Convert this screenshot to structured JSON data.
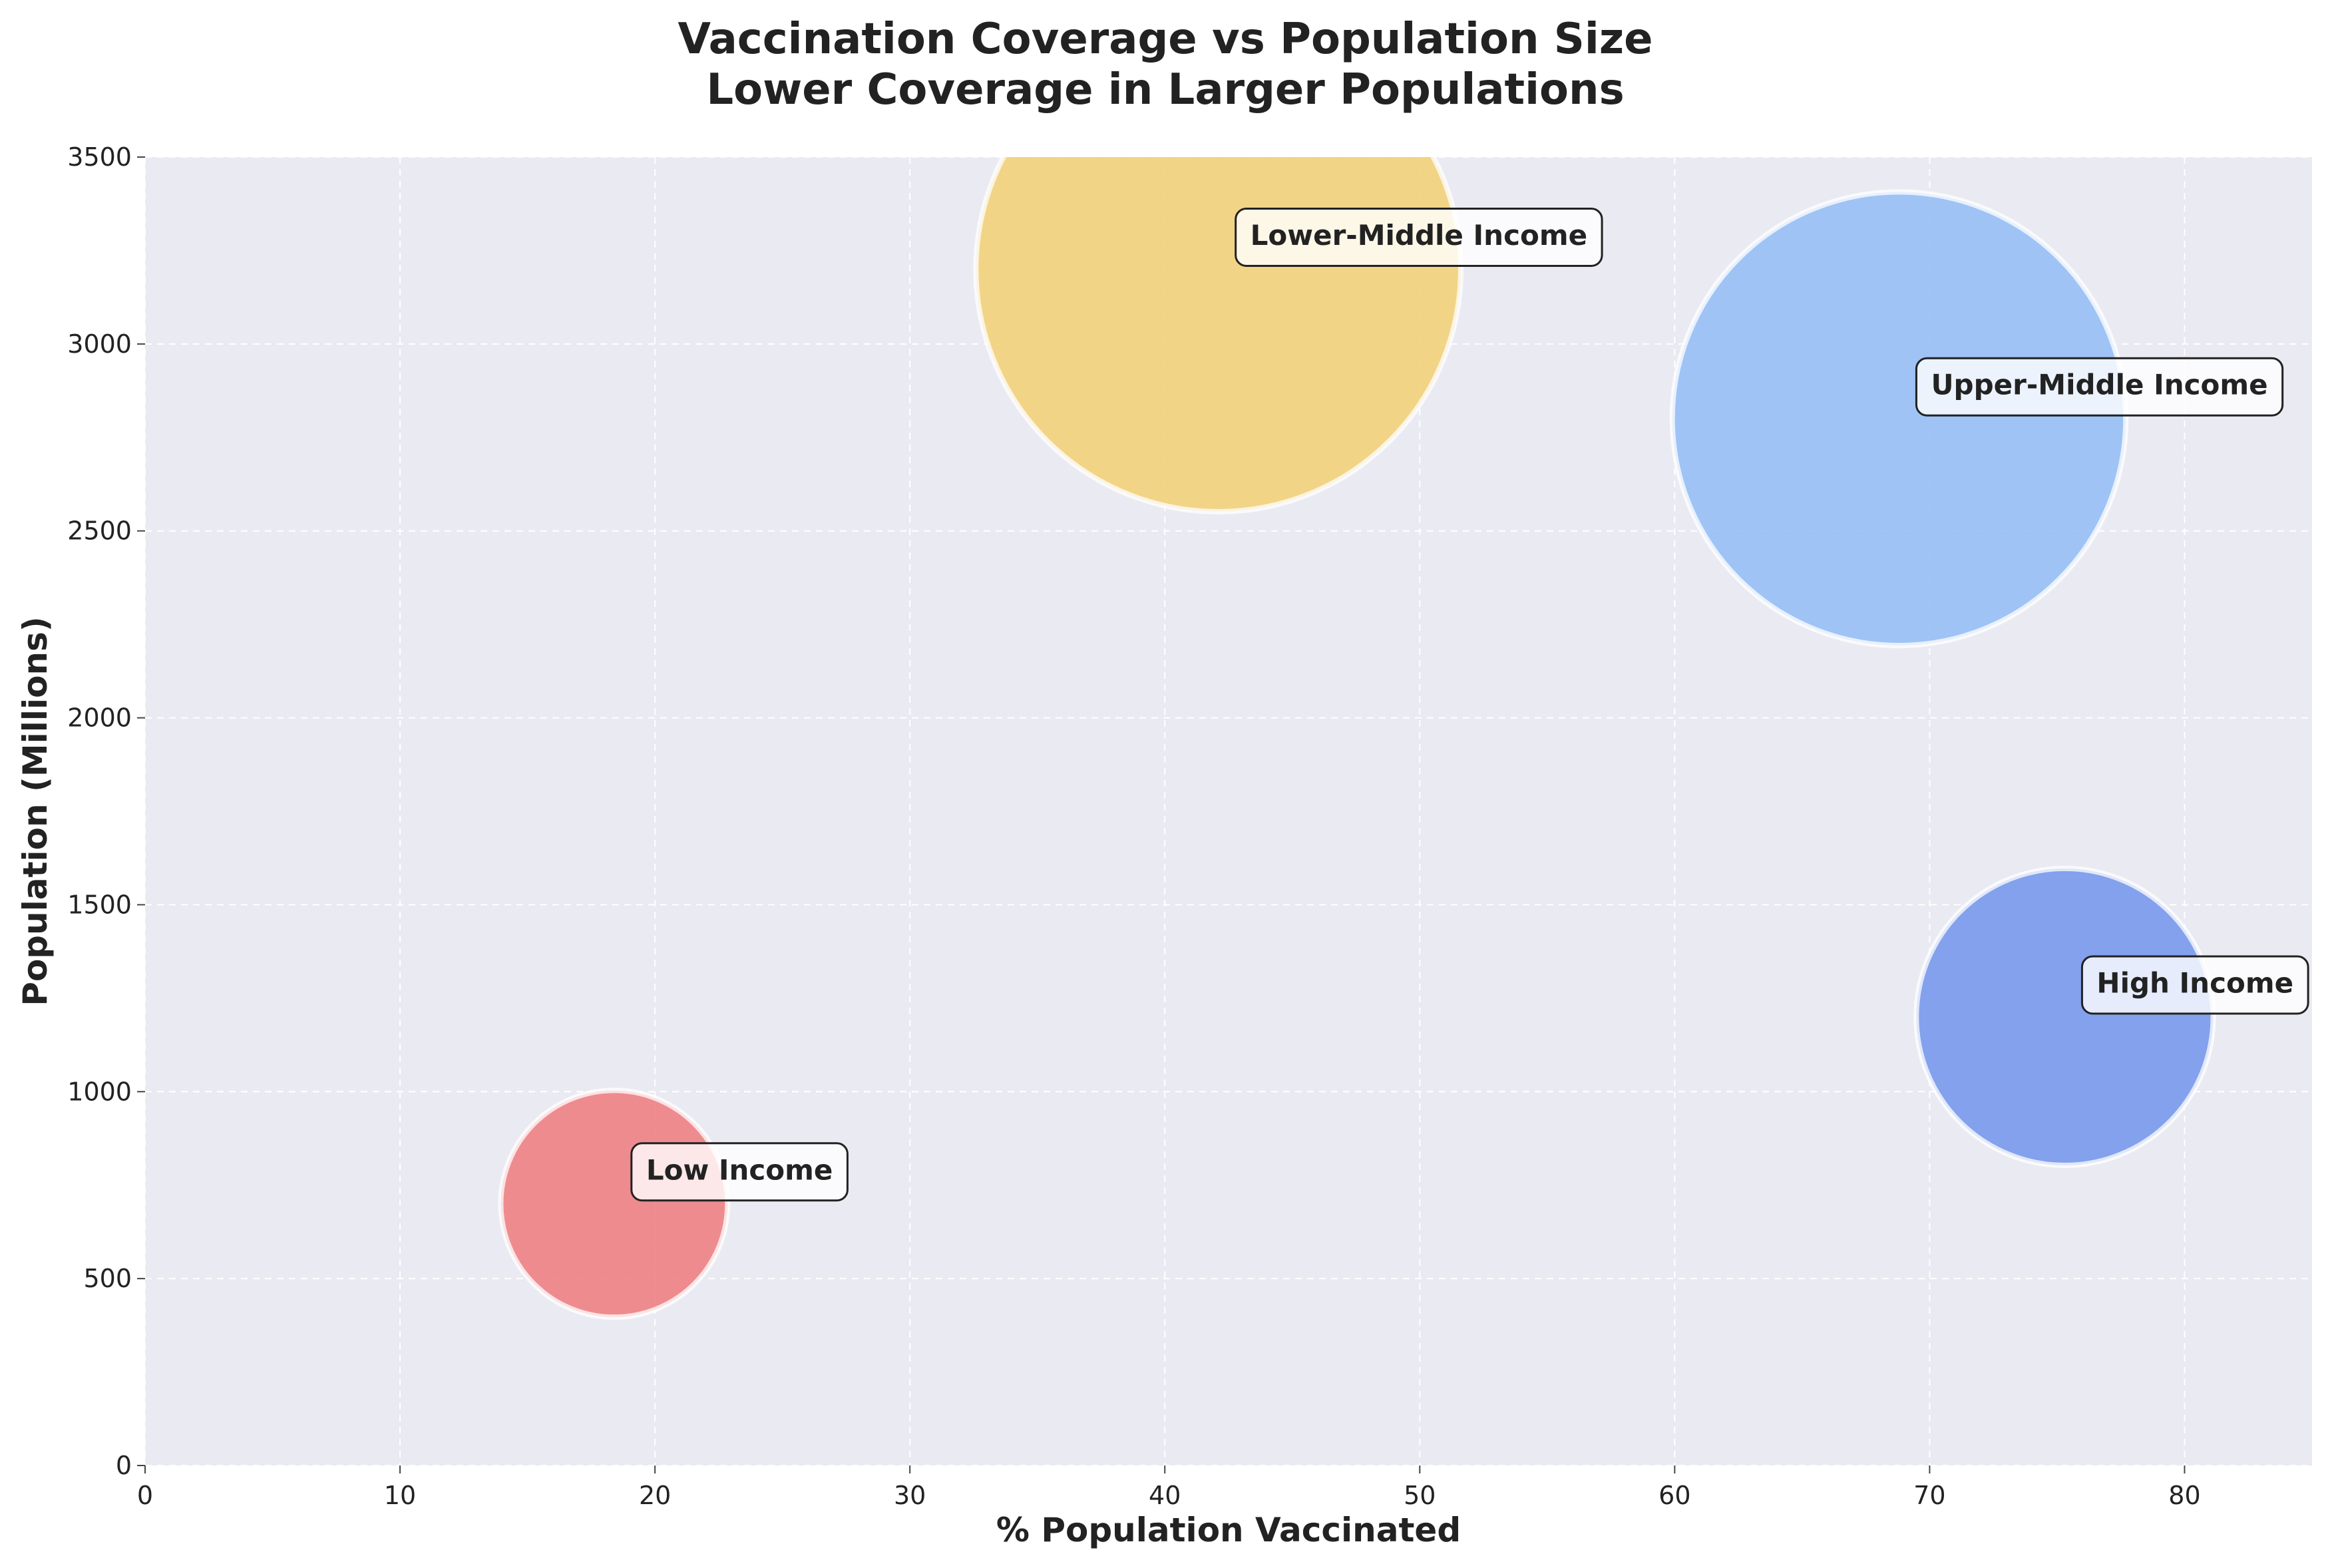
{
  "chart_data": {
    "type": "scatter",
    "title": "Vaccination Coverage vs Population Size",
    "subtitle": "Lower Coverage in Larger Populations",
    "xlabel": "% Population Vaccinated",
    "ylabel": "Population (Millions)",
    "xlim": [
      0,
      85
    ],
    "ylim": [
      0,
      3500
    ],
    "x_ticks": [
      0,
      10,
      20,
      30,
      40,
      50,
      60,
      70,
      80
    ],
    "y_ticks": [
      0,
      500,
      1000,
      1500,
      2000,
      2500,
      3000,
      3500
    ],
    "grid": true,
    "legend": "none",
    "bubble_size_variable": "population",
    "points": [
      {
        "label": "Low Income",
        "x": 18.4,
        "y": 700,
        "color": "#ee8184"
      },
      {
        "label": "Lower-Middle Income",
        "x": 42.1,
        "y": 3200,
        "color": "#f3d17a"
      },
      {
        "label": "Upper-Middle Income",
        "x": 68.8,
        "y": 2800,
        "color": "#97bff5"
      },
      {
        "label": "High Income",
        "x": 75.3,
        "y": 1200,
        "color": "#7899eb"
      }
    ]
  }
}
